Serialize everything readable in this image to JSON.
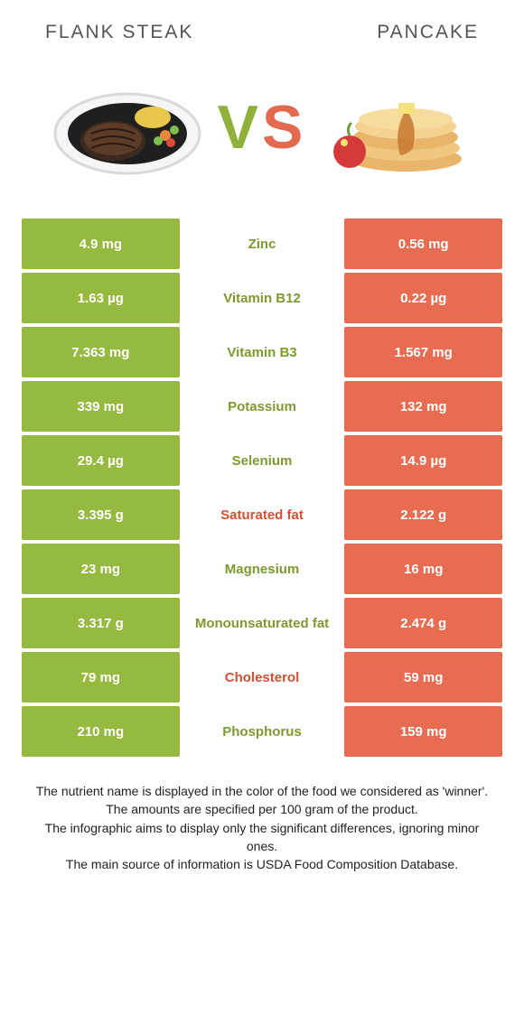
{
  "titles": {
    "left": "FLANK STEAK",
    "right": "PANCAKE"
  },
  "vs": {
    "v": "V",
    "s": "S"
  },
  "colors": {
    "left": "#96b93f",
    "right": "#e76c52",
    "mid_left_text": "#7c9a2f",
    "mid_right_text": "#d24f33"
  },
  "rows": [
    {
      "left": "4.9 mg",
      "label": "Zinc",
      "right": "0.56 mg",
      "winner": "left"
    },
    {
      "left": "1.63 µg",
      "label": "Vitamin B12",
      "right": "0.22 µg",
      "winner": "left"
    },
    {
      "left": "7.363 mg",
      "label": "Vitamin B3",
      "right": "1.567 mg",
      "winner": "left"
    },
    {
      "left": "339 mg",
      "label": "Potassium",
      "right": "132 mg",
      "winner": "left"
    },
    {
      "left": "29.4 µg",
      "label": "Selenium",
      "right": "14.9 µg",
      "winner": "left"
    },
    {
      "left": "3.395 g",
      "label": "Saturated fat",
      "right": "2.122 g",
      "winner": "right"
    },
    {
      "left": "23 mg",
      "label": "Magnesium",
      "right": "16 mg",
      "winner": "left"
    },
    {
      "left": "3.317 g",
      "label": "Monounsaturated fat",
      "right": "2.474 g",
      "winner": "left"
    },
    {
      "left": "79 mg",
      "label": "Cholesterol",
      "right": "59 mg",
      "winner": "right"
    },
    {
      "left": "210 mg",
      "label": "Phosphorus",
      "right": "159 mg",
      "winner": "left"
    }
  ],
  "footnote": [
    "The nutrient name is displayed in the color of the food we considered as 'winner'.",
    "The amounts are specified per 100 gram of the product.",
    "The infographic aims to display only the significant differences, ignoring minor ones.",
    "The main source of information is USDA Food Composition Database."
  ]
}
